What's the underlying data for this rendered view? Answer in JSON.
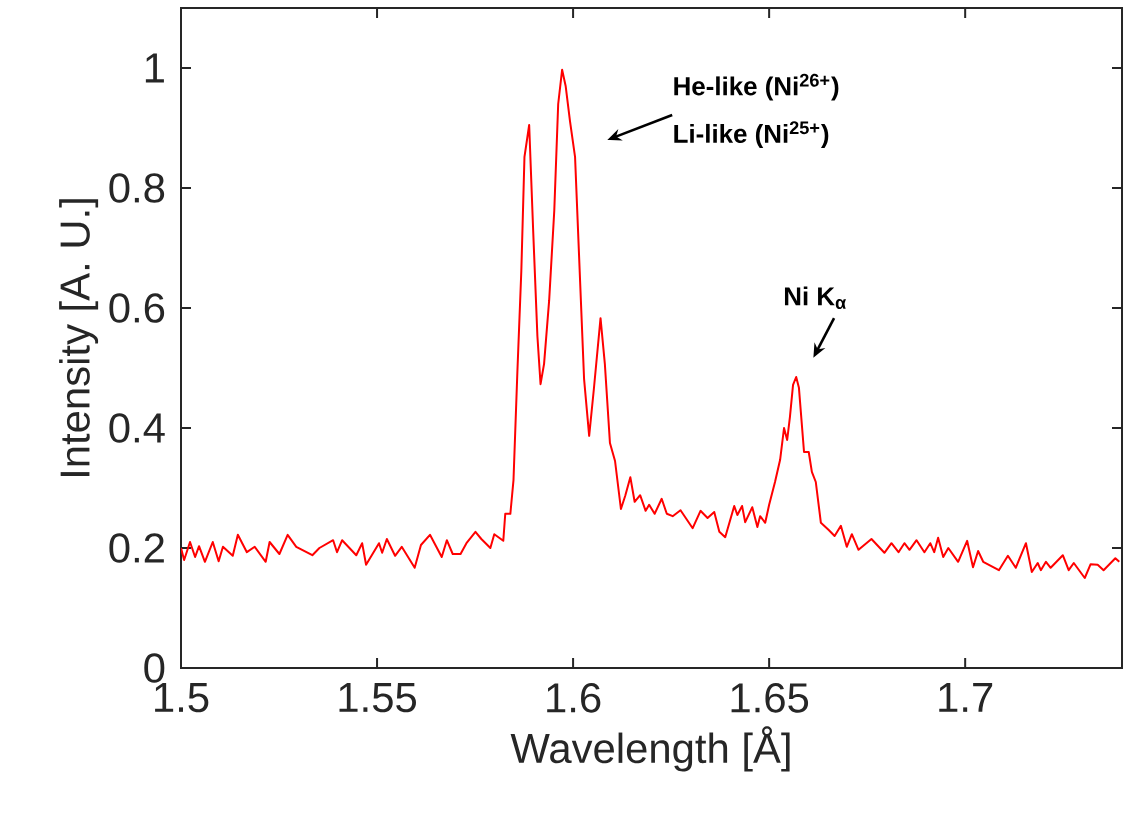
{
  "chart_data": {
    "type": "line",
    "xlabel": "Wavelength [Å]",
    "ylabel": "Intensity [A. U.]",
    "xlim": [
      1.5,
      1.74
    ],
    "ylim": [
      0,
      1.1
    ],
    "xticks": [
      1.5,
      1.55,
      1.6,
      1.65,
      1.7
    ],
    "yticks": [
      0,
      0.2,
      0.4,
      0.6,
      0.8,
      1
    ],
    "color": "#ff0000",
    "line_style": "solid",
    "marker": "none",
    "grid": false,
    "annotations": [
      "He-like (Ni$^{26+}$)",
      "Li-like (Ni$^{25+}$)",
      "Ni K$_{α}$"
    ],
    "x": [
      1.5,
      1.5008,
      1.5023,
      1.5036,
      1.5046,
      1.5061,
      1.5081,
      1.5096,
      1.5107,
      1.5132,
      1.5145,
      1.5168,
      1.5188,
      1.5216,
      1.5226,
      1.5251,
      1.5272,
      1.5294,
      1.5335,
      1.5353,
      1.5388,
      1.5398,
      1.5411,
      1.5447,
      1.5462,
      1.5472,
      1.5505,
      1.5513,
      1.5525,
      1.5546,
      1.5563,
      1.5596,
      1.5612,
      1.5635,
      1.5665,
      1.5678,
      1.5693,
      1.5713,
      1.5728,
      1.5751,
      1.5766,
      1.5789,
      1.5799,
      1.5822,
      1.5827,
      1.584,
      1.5848,
      1.5858,
      1.5868,
      1.5876,
      1.5888,
      1.5898,
      1.5909,
      1.5917,
      1.5926,
      1.5939,
      1.5952,
      1.5962,
      1.5972,
      1.5981,
      1.5992,
      1.6005,
      1.6018,
      1.6028,
      1.6041,
      1.6053,
      1.607,
      1.6081,
      1.6094,
      1.6107,
      1.6122,
      1.6133,
      1.6146,
      1.6157,
      1.6171,
      1.6185,
      1.6194,
      1.6208,
      1.6226,
      1.6239,
      1.6254,
      1.6274,
      1.6305,
      1.6325,
      1.6343,
      1.636,
      1.6373,
      1.6388,
      1.6411,
      1.6419,
      1.6431,
      1.6439,
      1.6457,
      1.647,
      1.6477,
      1.649,
      1.65,
      1.6515,
      1.6528,
      1.6538,
      1.6546,
      1.6553,
      1.6561,
      1.6569,
      1.6576,
      1.6589,
      1.6601,
      1.6609,
      1.6619,
      1.6632,
      1.6652,
      1.6667,
      1.6683,
      1.6698,
      1.6711,
      1.6728,
      1.6761,
      1.6794,
      1.6812,
      1.683,
      1.6845,
      1.6858,
      1.6876,
      1.6896,
      1.6911,
      1.6921,
      1.6931,
      1.6944,
      1.6957,
      1.6982,
      1.7005,
      1.702,
      1.7033,
      1.7046,
      1.7086,
      1.7109,
      1.7129,
      1.7155,
      1.717,
      1.7185,
      1.7193,
      1.7206,
      1.7218,
      1.7249,
      1.7264,
      1.7277,
      1.7305,
      1.732,
      1.7338,
      1.7353,
      1.7383,
      1.7393
    ],
    "values": [
      0.2,
      0.18,
      0.21,
      0.185,
      0.203,
      0.177,
      0.21,
      0.178,
      0.202,
      0.187,
      0.222,
      0.193,
      0.202,
      0.177,
      0.21,
      0.19,
      0.222,
      0.202,
      0.188,
      0.2,
      0.213,
      0.193,
      0.213,
      0.188,
      0.208,
      0.172,
      0.208,
      0.192,
      0.215,
      0.187,
      0.202,
      0.167,
      0.205,
      0.222,
      0.185,
      0.213,
      0.19,
      0.19,
      0.208,
      0.227,
      0.215,
      0.2,
      0.223,
      0.212,
      0.257,
      0.257,
      0.313,
      0.495,
      0.662,
      0.852,
      0.905,
      0.732,
      0.553,
      0.473,
      0.507,
      0.613,
      0.762,
      0.94,
      0.997,
      0.97,
      0.912,
      0.852,
      0.643,
      0.482,
      0.387,
      0.465,
      0.583,
      0.507,
      0.375,
      0.345,
      0.265,
      0.287,
      0.318,
      0.277,
      0.288,
      0.262,
      0.272,
      0.257,
      0.282,
      0.257,
      0.253,
      0.263,
      0.233,
      0.262,
      0.25,
      0.26,
      0.227,
      0.218,
      0.27,
      0.255,
      0.27,
      0.243,
      0.268,
      0.235,
      0.253,
      0.242,
      0.272,
      0.31,
      0.347,
      0.4,
      0.38,
      0.418,
      0.472,
      0.485,
      0.467,
      0.36,
      0.36,
      0.327,
      0.31,
      0.242,
      0.23,
      0.22,
      0.237,
      0.202,
      0.223,
      0.197,
      0.215,
      0.192,
      0.208,
      0.193,
      0.208,
      0.197,
      0.213,
      0.193,
      0.208,
      0.193,
      0.217,
      0.185,
      0.2,
      0.177,
      0.212,
      0.168,
      0.195,
      0.177,
      0.163,
      0.187,
      0.167,
      0.208,
      0.16,
      0.175,
      0.163,
      0.177,
      0.167,
      0.188,
      0.163,
      0.175,
      0.15,
      0.173,
      0.172,
      0.163,
      0.183,
      0.177
    ]
  }
}
